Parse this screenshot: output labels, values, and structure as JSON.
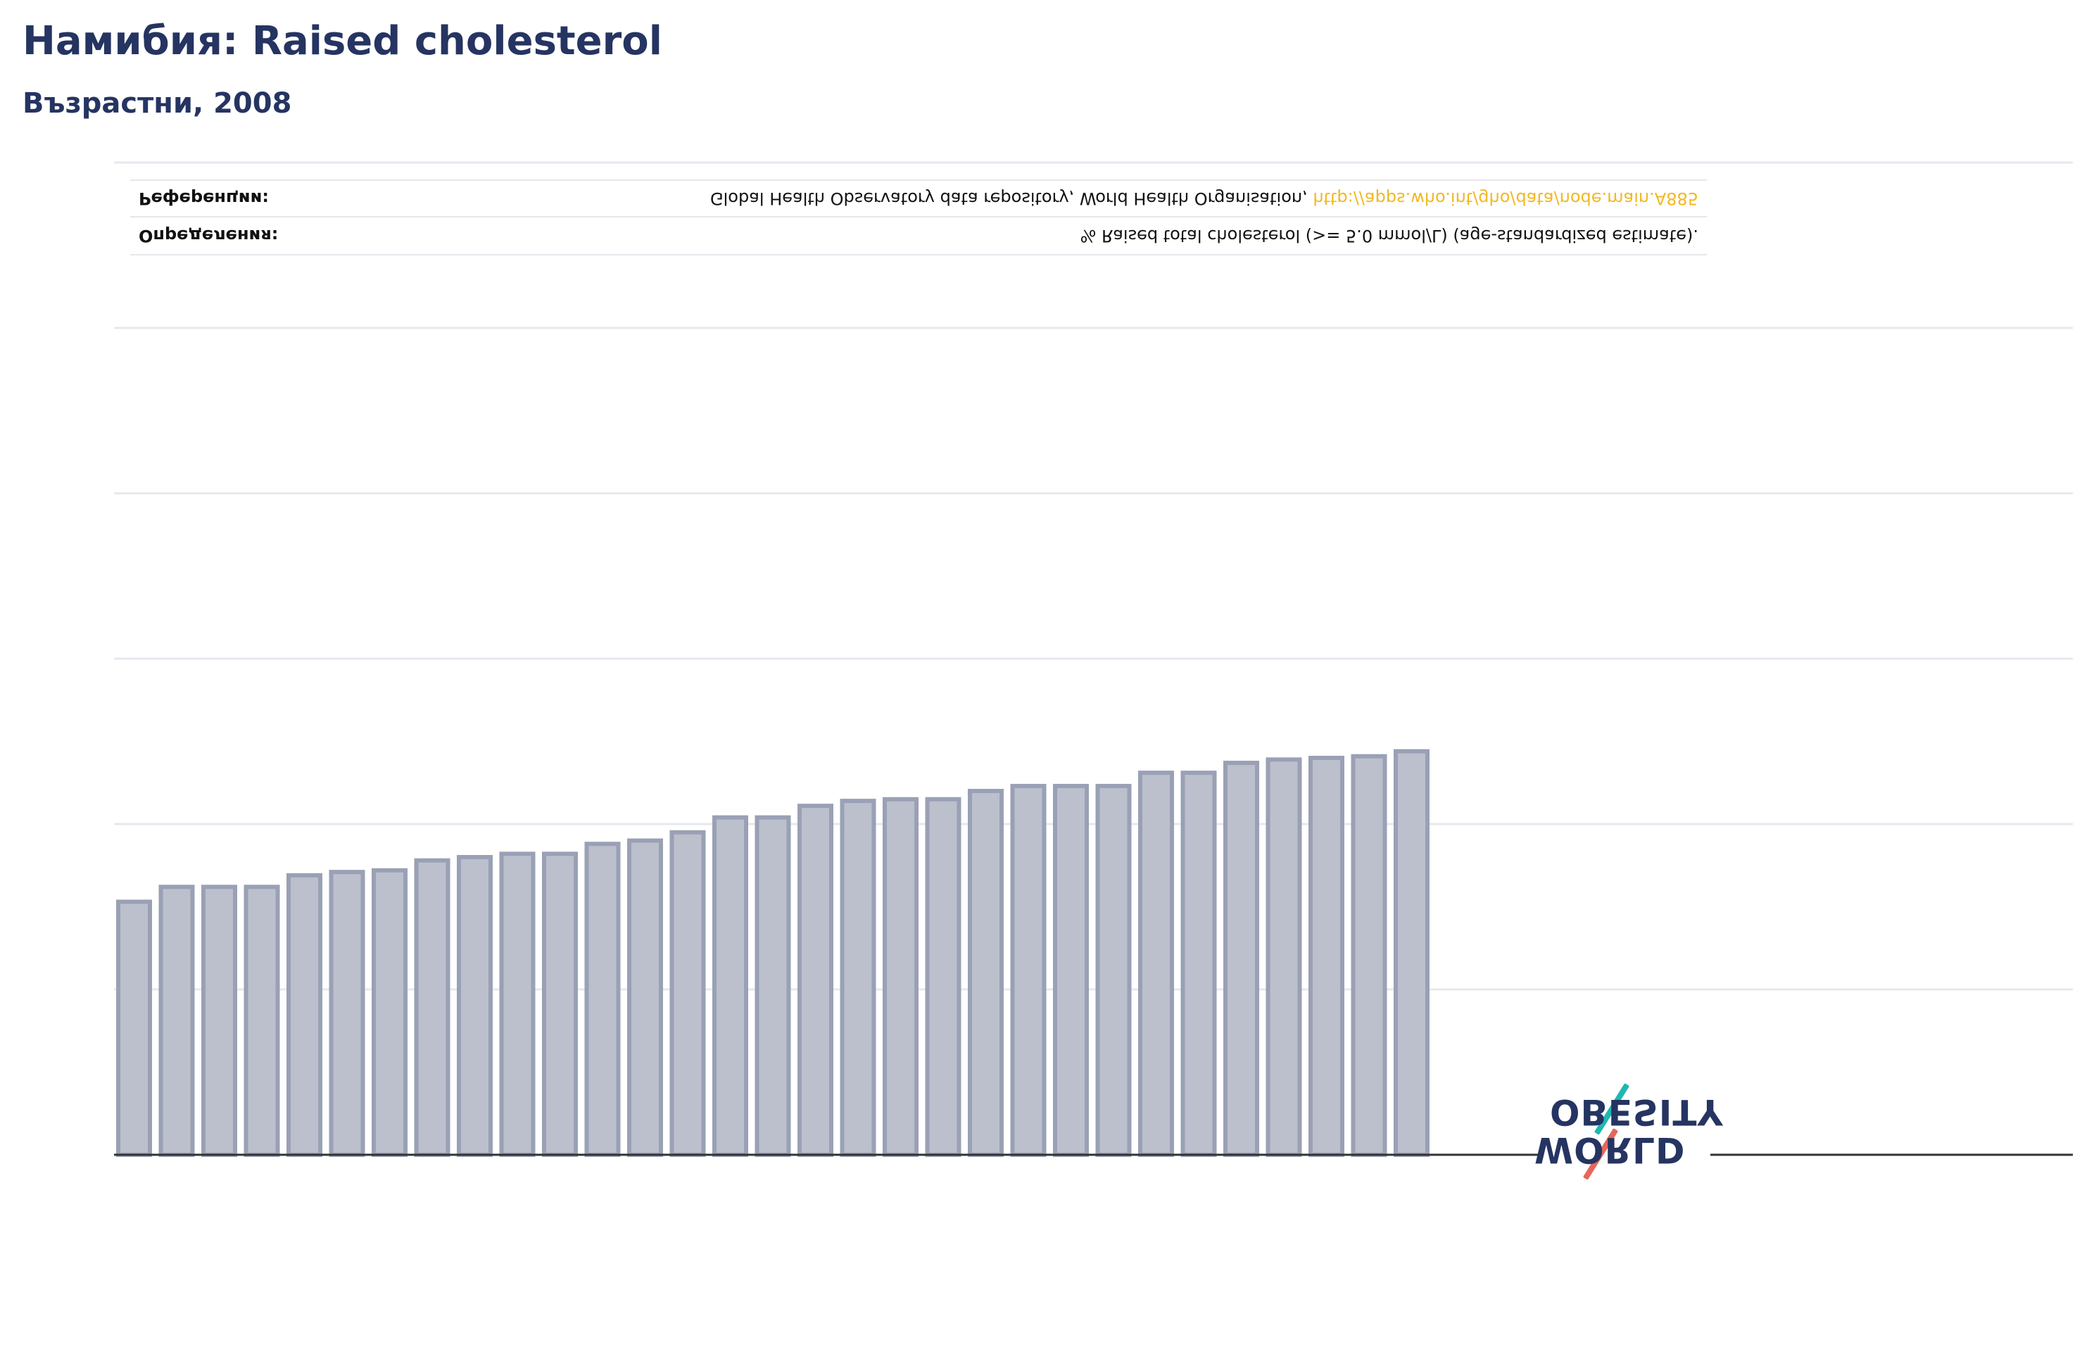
{
  "title": "Намибия: Raised cholesterol",
  "subtitle": "Възрастни, 2008",
  "info": {
    "definition_label": "Определения:",
    "definition_value": "% Raised total cholesterol (>= 5.0 mmol/L) (age-standardized estimate).",
    "reference_label": "Референции:",
    "reference_text": "Global Health Observatory data repository, World Health Organisation, ",
    "reference_link": "http://apps.who.int/gho/data/node.main.A885"
  },
  "logo": {
    "line1": "WORLD",
    "line2": "OBESITY",
    "colors": {
      "navy": "#253461",
      "red": "#e5675a",
      "teal": "#1fb7b2"
    }
  },
  "colors": {
    "title": "#253461",
    "bar_fill": "#bcc0cc",
    "bar_stroke": "#9aa0b5",
    "grid": "#e6e8ee",
    "axis": "#333333",
    "link": "#f2b823"
  },
  "chart_data": {
    "type": "bar",
    "orientation": "flipped-vertical",
    "grid": true,
    "ylim": [
      0,
      60
    ],
    "gridlines": [
      0,
      10,
      20,
      30,
      40,
      50,
      60
    ],
    "values": [
      15.3,
      16.2,
      16.2,
      16.2,
      16.9,
      17.1,
      17.2,
      17.8,
      18.0,
      18.2,
      18.2,
      18.8,
      19.0,
      19.5,
      20.4,
      20.4,
      21.1,
      21.4,
      21.5,
      21.5,
      22.0,
      22.3,
      22.3,
      22.3,
      23.1,
      23.1,
      23.7,
      23.9,
      24.0,
      24.1,
      24.4
    ]
  }
}
